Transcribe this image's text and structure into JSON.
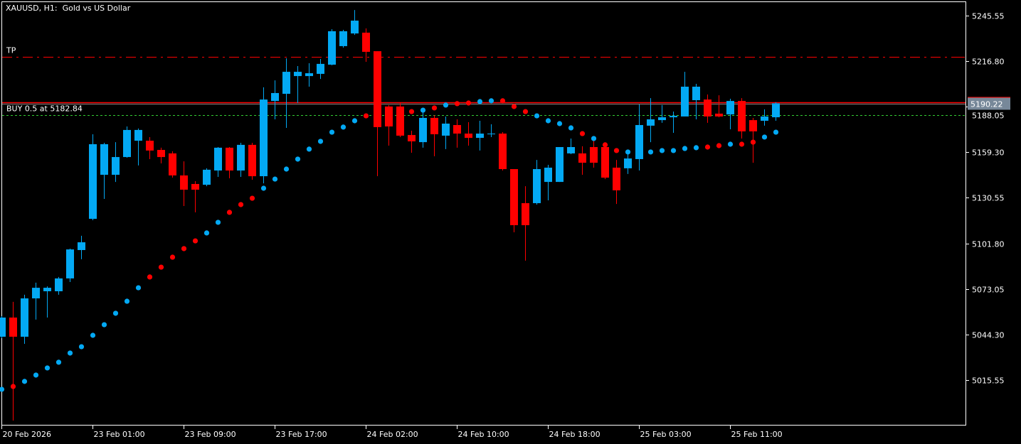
{
  "header": {
    "title": "XAUUSD, H1:  Gold vs US Dollar"
  },
  "colors": {
    "background": "#000000",
    "bull": "#03A9F4",
    "bear": "#FF0000",
    "frame": "#FFFFFF",
    "tp_line": "#FF0000",
    "entry_line": "#33CC33",
    "price_box": "#778899",
    "bid_line": "#FF0000"
  },
  "chart_data": {
    "type": "candlestick",
    "symbol": "XAUUSD",
    "timeframe": "H1",
    "ylim": [
      5009.0,
      5251.0
    ],
    "y_ticks": [
      "5245.55",
      "5216.80",
      "5188.05",
      "5159.30",
      "5130.55",
      "5101.80",
      "5073.05",
      "5044.30",
      "5015.55"
    ],
    "x_ticks": [
      {
        "label": "20 Feb 2026",
        "index": 0
      },
      {
        "label": "23 Feb 01:00",
        "index": 8
      },
      {
        "label": "23 Feb 09:00",
        "index": 16
      },
      {
        "label": "23 Feb 17:00",
        "index": 24
      },
      {
        "label": "24 Feb 02:00",
        "index": 32
      },
      {
        "label": "24 Feb 10:00",
        "index": 40
      },
      {
        "label": "24 Feb 18:00",
        "index": 48
      },
      {
        "label": "25 Feb 03:00",
        "index": 56
      },
      {
        "label": "25 Feb 11:00",
        "index": 64
      }
    ],
    "ohlc": [
      [
        5042.9,
        5055.9,
        5042.0,
        5055.0
      ],
      [
        5055.0,
        5064.9,
        4990.0,
        5042.9
      ],
      [
        5042.9,
        5069.4,
        5038.4,
        5067.1
      ],
      [
        5067.1,
        5077.0,
        5053.7,
        5073.8
      ],
      [
        5071.6,
        5074.7,
        5055.0,
        5073.8
      ],
      [
        5071.6,
        5080.6,
        5069.4,
        5079.7
      ],
      [
        5079.7,
        5098.5,
        5077.4,
        5098.0
      ],
      [
        5097.6,
        5106.6,
        5091.8,
        5102.5
      ],
      [
        5117.3,
        5170.7,
        5116.4,
        5164.4
      ],
      [
        5145.1,
        5165.3,
        5129.9,
        5164.4
      ],
      [
        5145.1,
        5165.7,
        5140.6,
        5156.3
      ],
      [
        5156.3,
        5175.6,
        5155.9,
        5173.4
      ],
      [
        5166.6,
        5174.3,
        5151.0,
        5173.4
      ],
      [
        5166.6,
        5168.9,
        5155.0,
        5160.4
      ],
      [
        5160.8,
        5162.2,
        5152.3,
        5156.3
      ],
      [
        5158.6,
        5159.9,
        5143.3,
        5144.7
      ],
      [
        5144.7,
        5153.6,
        5125.4,
        5135.7
      ],
      [
        5139.3,
        5141.1,
        5121.4,
        5135.7
      ],
      [
        5138.8,
        5149.2,
        5137.9,
        5148.3
      ],
      [
        5147.8,
        5162.6,
        5143.8,
        5162.2
      ],
      [
        5162.2,
        5162.6,
        5142.9,
        5147.8
      ],
      [
        5147.8,
        5165.3,
        5143.8,
        5164.0
      ],
      [
        5164.0,
        5165.3,
        5142.0,
        5144.2
      ],
      [
        5144.2,
        5200.3,
        5139.7,
        5192.6
      ],
      [
        5191.7,
        5204.7,
        5180.1,
        5196.7
      ],
      [
        5196.2,
        5218.6,
        5174.7,
        5210.1
      ],
      [
        5207.4,
        5213.7,
        5190.4,
        5210.1
      ],
      [
        5207.4,
        5215.5,
        5200.7,
        5209.2
      ],
      [
        5208.8,
        5218.2,
        5205.6,
        5215.1
      ],
      [
        5214.6,
        5237.0,
        5214.2,
        5235.7
      ],
      [
        5226.3,
        5236.6,
        5225.4,
        5235.7
      ],
      [
        5234.3,
        5249.1,
        5233.4,
        5242.4
      ],
      [
        5234.8,
        5237.5,
        5216.4,
        5222.7
      ],
      [
        5223.1,
        5223.1,
        5144.2,
        5175.2
      ],
      [
        5188.2,
        5189.1,
        5163.5,
        5175.6
      ],
      [
        5188.2,
        5190.4,
        5168.9,
        5169.8
      ],
      [
        5170.2,
        5172.9,
        5159.0,
        5166.2
      ],
      [
        5165.7,
        5185.9,
        5162.2,
        5181.0
      ],
      [
        5181.0,
        5182.8,
        5156.8,
        5170.7
      ],
      [
        5169.8,
        5181.9,
        5161.3,
        5177.4
      ],
      [
        5176.5,
        5180.1,
        5162.2,
        5171.1
      ],
      [
        5171.1,
        5178.3,
        5163.5,
        5168.4
      ],
      [
        5168.4,
        5179.2,
        5160.4,
        5171.1
      ],
      [
        5170.7,
        5177.0,
        5168.9,
        5171.1
      ],
      [
        5171.1,
        5172.0,
        5147.8,
        5148.7
      ],
      [
        5148.7,
        5148.7,
        5108.8,
        5113.3
      ],
      [
        5127.2,
        5137.9,
        5090.9,
        5113.3
      ],
      [
        5127.2,
        5154.5,
        5126.3,
        5148.7
      ],
      [
        5140.6,
        5151.4,
        5129.0,
        5149.6
      ],
      [
        5140.6,
        5162.6,
        5140.6,
        5162.6
      ],
      [
        5158.6,
        5168.0,
        5158.1,
        5162.6
      ],
      [
        5158.6,
        5163.1,
        5145.1,
        5152.7
      ],
      [
        5162.6,
        5169.3,
        5149.6,
        5152.7
      ],
      [
        5162.6,
        5165.3,
        5142.4,
        5143.3
      ],
      [
        5149.6,
        5154.5,
        5126.7,
        5135.3
      ],
      [
        5149.2,
        5159.5,
        5145.6,
        5155.4
      ],
      [
        5155.0,
        5189.5,
        5147.8,
        5176.5
      ],
      [
        5176.1,
        5193.5,
        5165.7,
        5180.1
      ],
      [
        5179.6,
        5189.1,
        5177.9,
        5181.4
      ],
      [
        5181.4,
        5185.0,
        5171.6,
        5182.3
      ],
      [
        5181.9,
        5210.1,
        5181.9,
        5200.7
      ],
      [
        5192.2,
        5202.5,
        5180.1,
        5200.7
      ],
      [
        5192.6,
        5195.8,
        5177.9,
        5181.9
      ],
      [
        5183.7,
        5195.3,
        5181.4,
        5181.9
      ],
      [
        5183.2,
        5193.1,
        5173.8,
        5191.7
      ],
      [
        5191.7,
        5193.5,
        5168.0,
        5172.5
      ],
      [
        5179.6,
        5181.0,
        5152.7,
        5172.5
      ],
      [
        5179.2,
        5186.4,
        5176.1,
        5181.9
      ],
      [
        5181.4,
        5190.9,
        5179.2,
        5190.22
      ]
    ],
    "sar_values": [
      5009.7,
      5011.5,
      5014.7,
      5018.7,
      5023.2,
      5026.8,
      5032.6,
      5036.6,
      5043.8,
      5050.5,
      5057.7,
      5065.3,
      5073.8,
      5080.6,
      5086.8,
      5093.1,
      5098.5,
      5103.4,
      5108.4,
      5115.1,
      5121.4,
      5126.3,
      5130.3,
      5136.6,
      5142.4,
      5148.7,
      5155.0,
      5161.3,
      5166.2,
      5172.0,
      5175.2,
      5179.2,
      5182.3,
      null,
      null,
      null,
      5185.0,
      5185.9,
      5187.3,
      5189.1,
      5190.0,
      5190.4,
      5191.3,
      5191.8,
      5191.8,
      5188.2,
      5185.0,
      5182.3,
      5179.2,
      5177.4,
      5174.7,
      5171.1,
      5168.0,
      5164.0,
      5160.4,
      5159.5,
      null,
      5159.5,
      5160.4,
      5160.4,
      5161.7,
      5162.2,
      5162.6,
      5163.5,
      5164.4,
      5164.4,
      5165.7,
      5168.9,
      5172.0
    ],
    "sar_colors": [
      "b",
      "r",
      "b",
      "b",
      "b",
      "b",
      "b",
      "b",
      "b",
      "b",
      "b",
      "b",
      "b",
      "r",
      "r",
      "r",
      "r",
      "r",
      "b",
      "b",
      "r",
      "r",
      "r",
      "b",
      "b",
      "b",
      "b",
      "b",
      "b",
      "b",
      "b",
      "b",
      "r",
      "r",
      "r",
      "r",
      "r",
      "b",
      "r",
      "b",
      "r",
      "r",
      "b",
      "b",
      "r",
      "r",
      "r",
      "b",
      "b",
      "b",
      "b",
      "r",
      "b",
      "r",
      "r",
      "b",
      "b",
      "b",
      "b",
      "b",
      "b",
      "b",
      "r",
      "r",
      "b",
      "r",
      "r",
      "b",
      "b"
    ],
    "levels": {
      "tp": {
        "label": "TP",
        "price": 5219.55
      },
      "entry": {
        "label": "BUY 0.5 at 5182.84",
        "price": 5182.84
      },
      "bid": {
        "price": 5190.22,
        "label": "5190.22"
      }
    }
  }
}
